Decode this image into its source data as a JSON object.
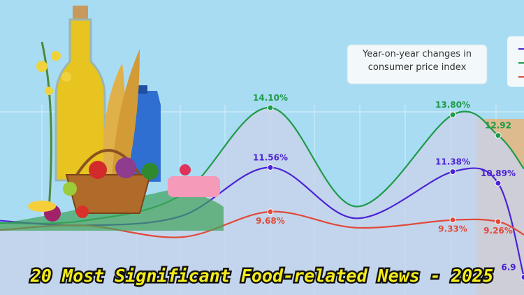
{
  "chart_data": {
    "type": "line",
    "title": "20 Most Significant Food-related News - 2025",
    "annotation": "Year-on-year changes in consumer price index",
    "categories": [
      null,
      null,
      null,
      null,
      null,
      null,
      null,
      null
    ],
    "ylim": [
      6.5,
      16
    ],
    "series": [
      {
        "color": "#1f9a4a",
        "values": [
          9.2,
          9.3,
          10.4,
          14.1,
          9.9,
          13.8,
          12.92,
          11.5
        ],
        "value_labels": [
          null,
          null,
          null,
          "14.10%",
          null,
          "13.80%",
          "12.92",
          null
        ]
      },
      {
        "color": "#4b23d6",
        "values": [
          9.3,
          9.1,
          9.5,
          11.56,
          9.4,
          11.38,
          10.89,
          6.9
        ],
        "value_labels": [
          null,
          null,
          null,
          "11.56%",
          null,
          "11.38%",
          "10.89%",
          "6.9"
        ]
      },
      {
        "color": "#e04a3a",
        "values": [
          8.9,
          9.1,
          8.6,
          9.68,
          9.0,
          9.33,
          9.26,
          8.7
        ],
        "value_labels": [
          null,
          null,
          null,
          "9.68%",
          null,
          "9.33%",
          "9.26%",
          null
        ]
      }
    ]
  }
}
